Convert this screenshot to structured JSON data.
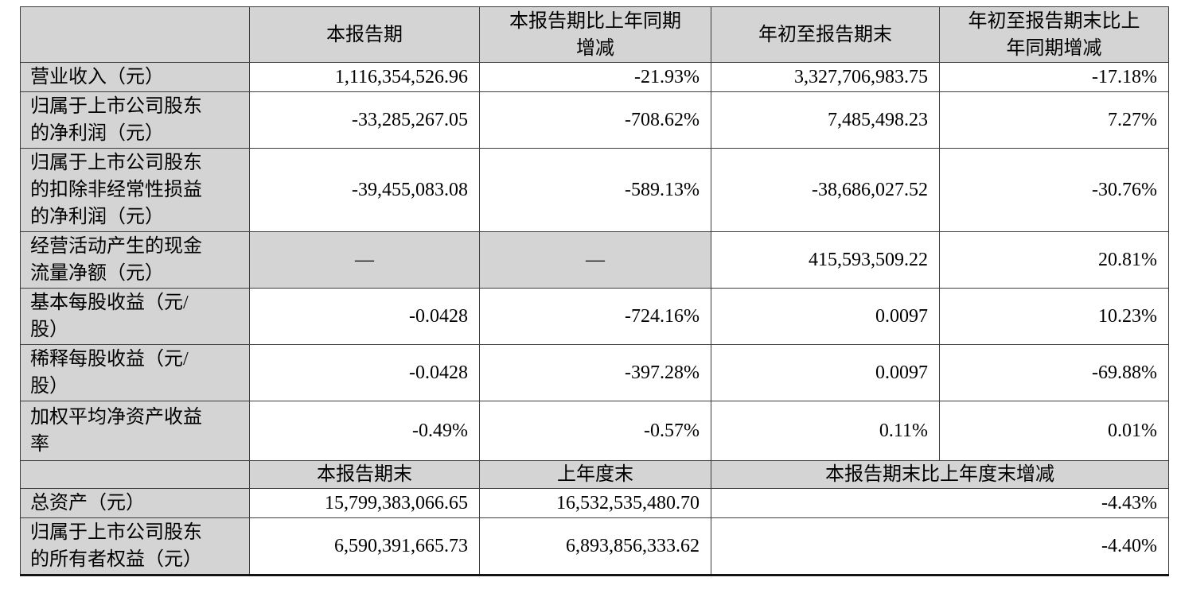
{
  "table": {
    "header": {
      "empty": "",
      "current_period": "本报告期",
      "current_vs_prior": "本报告期比上年同期\n增减",
      "ytd": "年初至报告期末",
      "ytd_vs_prior": "年初至报告期末比上\n年同期增减"
    },
    "rows": [
      {
        "label": "营业收入（元）",
        "current": "1,116,354,526.96",
        "current_vs_prior": "-21.93%",
        "ytd": "3,327,706,983.75",
        "ytd_vs_prior": "-17.18%"
      },
      {
        "label": "归属于上市公司股东\n的净利润（元）",
        "current": "-33,285,267.05",
        "current_vs_prior": "-708.62%",
        "ytd": "7,485,498.23",
        "ytd_vs_prior": "7.27%"
      },
      {
        "label": "归属于上市公司股东\n的扣除非经常性损益\n的净利润（元）",
        "current": "-39,455,083.08",
        "current_vs_prior": "-589.13%",
        "ytd": "-38,686,027.52",
        "ytd_vs_prior": "-30.76%"
      },
      {
        "label": "经营活动产生的现金\n流量净额（元）",
        "current": "—",
        "current_vs_prior": "—",
        "ytd": "415,593,509.22",
        "ytd_vs_prior": "20.81%"
      },
      {
        "label": "基本每股收益（元/\n股）",
        "current": "-0.0428",
        "current_vs_prior": "-724.16%",
        "ytd": "0.0097",
        "ytd_vs_prior": "10.23%"
      },
      {
        "label": "稀释每股收益（元/\n股）",
        "current": "-0.0428",
        "current_vs_prior": "-397.28%",
        "ytd": "0.0097",
        "ytd_vs_prior": "-69.88%"
      },
      {
        "label": "加权平均净资产收益\n率",
        "current": "-0.49%",
        "current_vs_prior": "-0.57%",
        "ytd": "0.11%",
        "ytd_vs_prior": "0.01%"
      }
    ],
    "subheader": {
      "empty": "",
      "period_end": "本报告期末",
      "prior_year_end": "上年度末",
      "period_end_vs_prior_year_end": "本报告期末比上年度末增减"
    },
    "bottom_rows": [
      {
        "label": "总资产（元）",
        "period_end": "15,799,383,066.65",
        "prior_year_end": "16,532,535,480.70",
        "change": "-4.43%"
      },
      {
        "label": "归属于上市公司股东\n的所有者权益（元）",
        "period_end": "6,590,391,665.73",
        "prior_year_end": "6,893,856,333.62",
        "change": "-4.40%"
      }
    ],
    "colors": {
      "shaded_cell_bg": "#d4d4d4",
      "grid_line": "#3c3c3c",
      "text": "#000000"
    }
  }
}
